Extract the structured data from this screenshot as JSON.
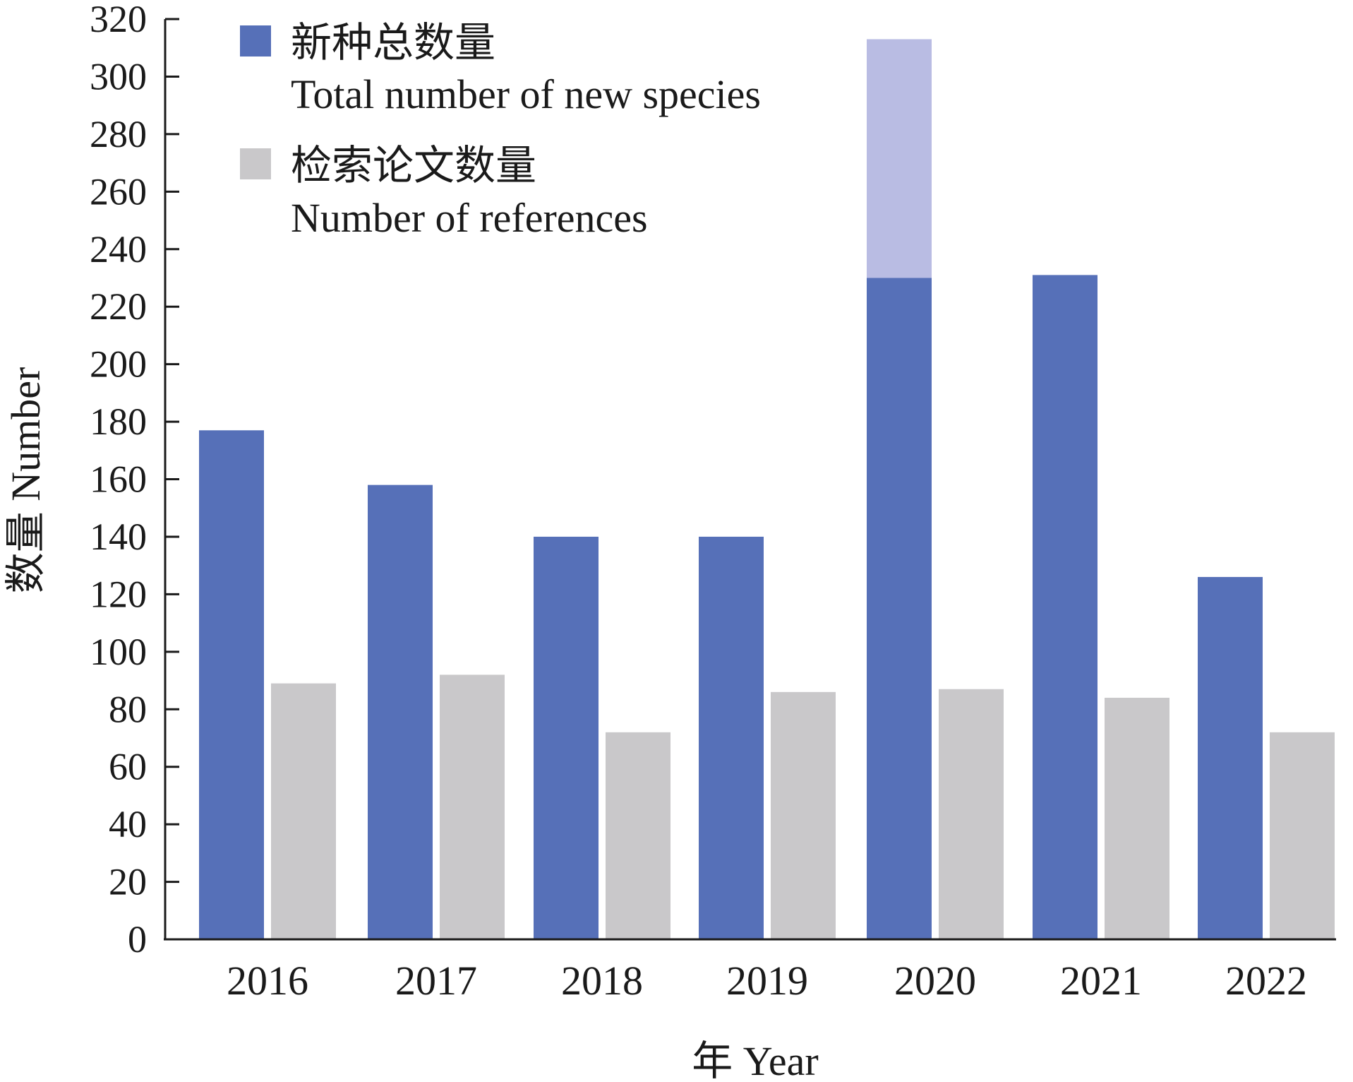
{
  "chart_data": {
    "type": "bar",
    "categories": [
      "2016",
      "2017",
      "2018",
      "2019",
      "2020",
      "2021",
      "2022"
    ],
    "series": [
      {
        "name": "新种总数量 Total number of new species",
        "name_zh": "新种总数量",
        "name_en": "Total number of new species",
        "color": "#5670b8",
        "values": [
          177,
          158,
          140,
          140,
          230,
          231,
          126
        ]
      },
      {
        "name": "检索论文数量 Number of references",
        "name_zh": "检索论文数量",
        "name_en": "Number of references",
        "color": "#c9c8ca",
        "values": [
          89,
          92,
          72,
          86,
          87,
          84,
          72
        ]
      }
    ],
    "overlay": {
      "category": "2020",
      "from": 230,
      "to": 313,
      "color": "#b9bce3"
    },
    "xlabel": "年 Year",
    "ylabel": "数量 Number",
    "ylim": [
      0,
      320
    ],
    "yticks": [
      0,
      20,
      40,
      60,
      80,
      100,
      120,
      140,
      160,
      180,
      200,
      220,
      240,
      260,
      280,
      300,
      320
    ],
    "grid": false,
    "legend_position": "top-left"
  }
}
